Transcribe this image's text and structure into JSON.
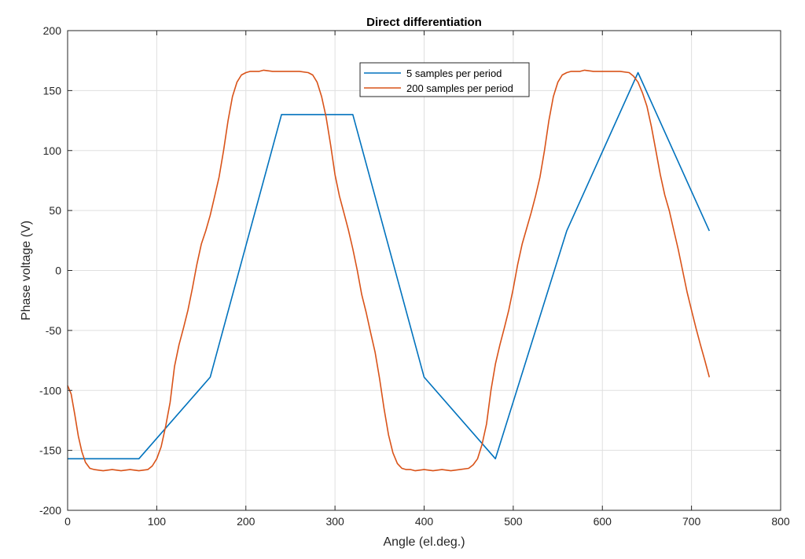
{
  "chart_data": {
    "type": "line",
    "title": "Direct differentiation",
    "xlabel": "Angle (el.deg.)",
    "ylabel": "Phase voltage (V)",
    "xlim": [
      0,
      800
    ],
    "ylim": [
      -200,
      200
    ],
    "xticks": [
      0,
      100,
      200,
      300,
      400,
      500,
      600,
      700,
      800
    ],
    "yticks": [
      -200,
      -150,
      -100,
      -50,
      0,
      50,
      100,
      150,
      200
    ],
    "grid": true,
    "legend_position": "top-center",
    "series": [
      {
        "name": "5 samples per period",
        "color": "#0072BD",
        "x": [
          0,
          80,
          160,
          240,
          320,
          400,
          480,
          560,
          640,
          720
        ],
        "y": [
          -157,
          -157,
          -89,
          130,
          130,
          -89,
          -157,
          33,
          165,
          33
        ]
      },
      {
        "name": "200 samples per period",
        "color": "#D95319",
        "x": [
          0,
          4,
          8,
          12,
          16,
          20,
          25,
          30,
          40,
          50,
          60,
          70,
          80,
          90,
          95,
          100,
          105,
          110,
          115,
          120,
          125,
          130,
          135,
          140,
          145,
          150,
          155,
          160,
          165,
          170,
          175,
          180,
          185,
          190,
          195,
          200,
          205,
          210,
          215,
          220,
          230,
          240,
          250,
          260,
          270,
          275,
          280,
          285,
          290,
          295,
          300,
          305,
          310,
          315,
          320,
          325,
          330,
          335,
          340,
          345,
          350,
          355,
          360,
          365,
          370,
          375,
          380,
          385,
          390,
          400,
          410,
          420,
          430,
          440,
          450,
          455,
          460,
          465,
          470,
          475,
          480,
          485,
          490,
          495,
          500,
          505,
          510,
          515,
          520,
          525,
          530,
          535,
          540,
          545,
          550,
          555,
          560,
          565,
          570,
          575,
          580,
          590,
          600,
          610,
          620,
          630,
          635,
          640,
          645,
          650,
          655,
          660,
          665,
          670,
          675,
          680,
          685,
          690,
          695,
          700,
          705,
          710,
          715,
          720
        ],
        "y": [
          -96,
          -103,
          -120,
          -138,
          -151,
          -160,
          -165,
          -166,
          -167,
          -166,
          -167,
          -166,
          -167,
          -166,
          -163,
          -157,
          -147,
          -130,
          -110,
          -80,
          -62,
          -48,
          -33,
          -15,
          5,
          22,
          33,
          46,
          62,
          78,
          100,
          125,
          145,
          157,
          163,
          165,
          166,
          166,
          166,
          167,
          166,
          166,
          166,
          166,
          165,
          163,
          157,
          145,
          128,
          105,
          80,
          62,
          48,
          34,
          18,
          0,
          -20,
          -35,
          -52,
          -68,
          -90,
          -115,
          -137,
          -152,
          -161,
          -165,
          -166,
          -166,
          -167,
          -166,
          -167,
          -166,
          -167,
          -166,
          -165,
          -162,
          -157,
          -145,
          -128,
          -100,
          -78,
          -62,
          -48,
          -33,
          -15,
          5,
          22,
          35,
          48,
          62,
          78,
          100,
          125,
          145,
          157,
          163,
          165,
          166,
          166,
          166,
          167,
          166,
          166,
          166,
          166,
          165,
          162,
          157,
          148,
          137,
          120,
          100,
          80,
          63,
          50,
          34,
          18,
          0,
          -18,
          -33,
          -48,
          -62,
          -75,
          -89
        ]
      }
    ]
  }
}
